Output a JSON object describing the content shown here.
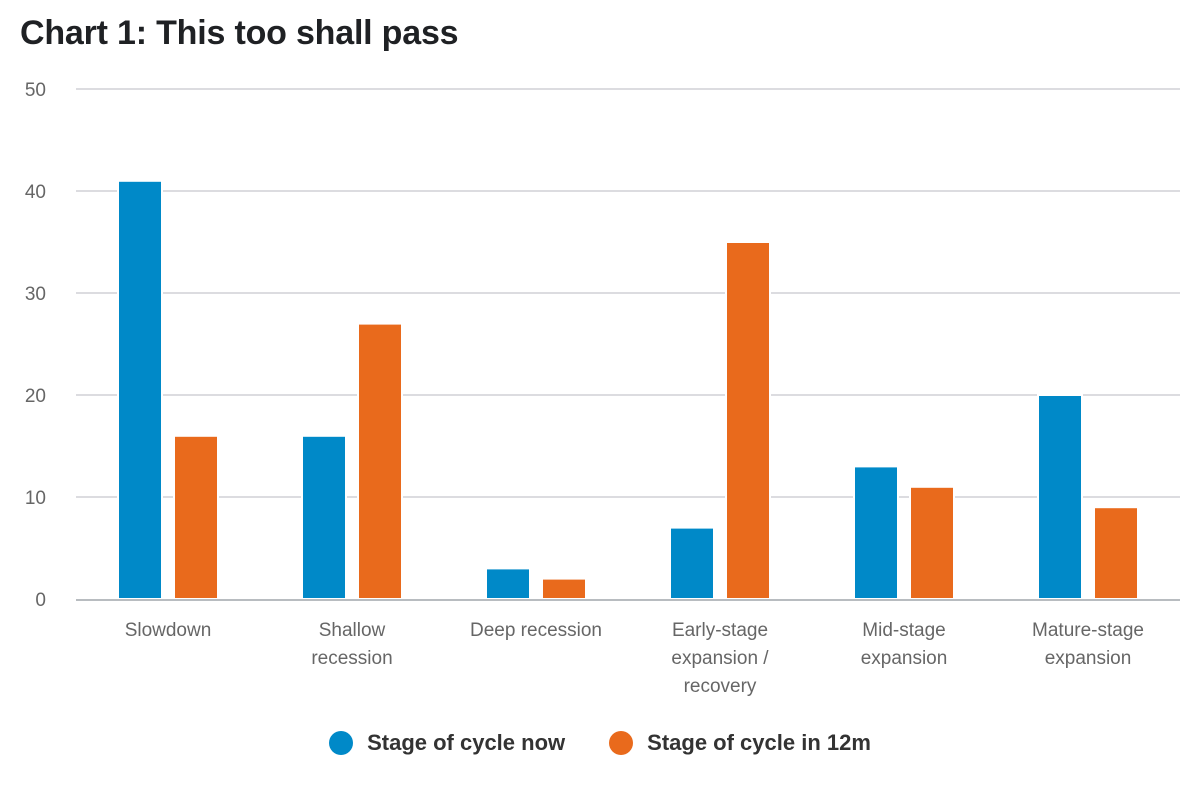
{
  "chart_data": {
    "type": "bar",
    "title": "Chart 1: This too shall pass",
    "xlabel": "",
    "ylabel": "",
    "ylim": [
      0,
      50
    ],
    "yticks": [
      0,
      10,
      20,
      30,
      40,
      50
    ],
    "grid": true,
    "legend_position": "bottom-center",
    "categories": [
      [
        "Slowdown"
      ],
      [
        "Shallow",
        "recession"
      ],
      [
        "Deep recession"
      ],
      [
        "Early-stage",
        "expansion /",
        "recovery"
      ],
      [
        "Mid-stage",
        "expansion"
      ],
      [
        "Mature-stage",
        "expansion"
      ]
    ],
    "series": [
      {
        "name": "Stage of cycle now",
        "color": "#0089c8",
        "values": [
          41,
          16,
          3,
          7,
          13,
          20
        ]
      },
      {
        "name": "Stage of cycle in 12m",
        "color": "#e96a1c",
        "values": [
          16,
          27,
          2,
          35,
          11,
          9
        ]
      }
    ]
  },
  "colors": {
    "grid": "#dcdce0",
    "axis": "#b8bcc0"
  }
}
